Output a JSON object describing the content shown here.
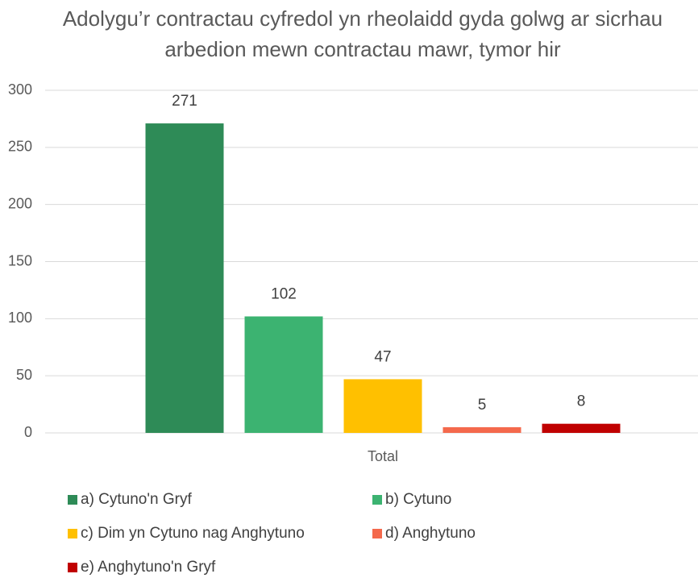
{
  "chart_data": {
    "type": "bar",
    "title": "Adolygu’r contractau cyfredol yn rheolaidd gyda golwg ar sicrhau arbedion mewn contractau mawr, tymor hir",
    "categories": [
      "Total"
    ],
    "series": [
      {
        "name": "a) Cytuno'n Gryf",
        "color": "#2e8b57",
        "values": [
          271
        ]
      },
      {
        "name": "b) Cytuno",
        "color": "#3cb371",
        "values": [
          102
        ]
      },
      {
        "name": "c) Dim yn Cytuno nag Anghytuno",
        "color": "#ffc000",
        "values": [
          47
        ]
      },
      {
        "name": "d) Anghytuno",
        "color": "#f4694c",
        "values": [
          5
        ]
      },
      {
        "name": "e) Anghytuno'n Gryf",
        "color": "#c00000",
        "values": [
          8
        ]
      }
    ],
    "ylim": [
      0,
      300
    ],
    "yticks": [
      0,
      50,
      100,
      150,
      200,
      250,
      300
    ],
    "grid": true,
    "legend": "bottom"
  }
}
